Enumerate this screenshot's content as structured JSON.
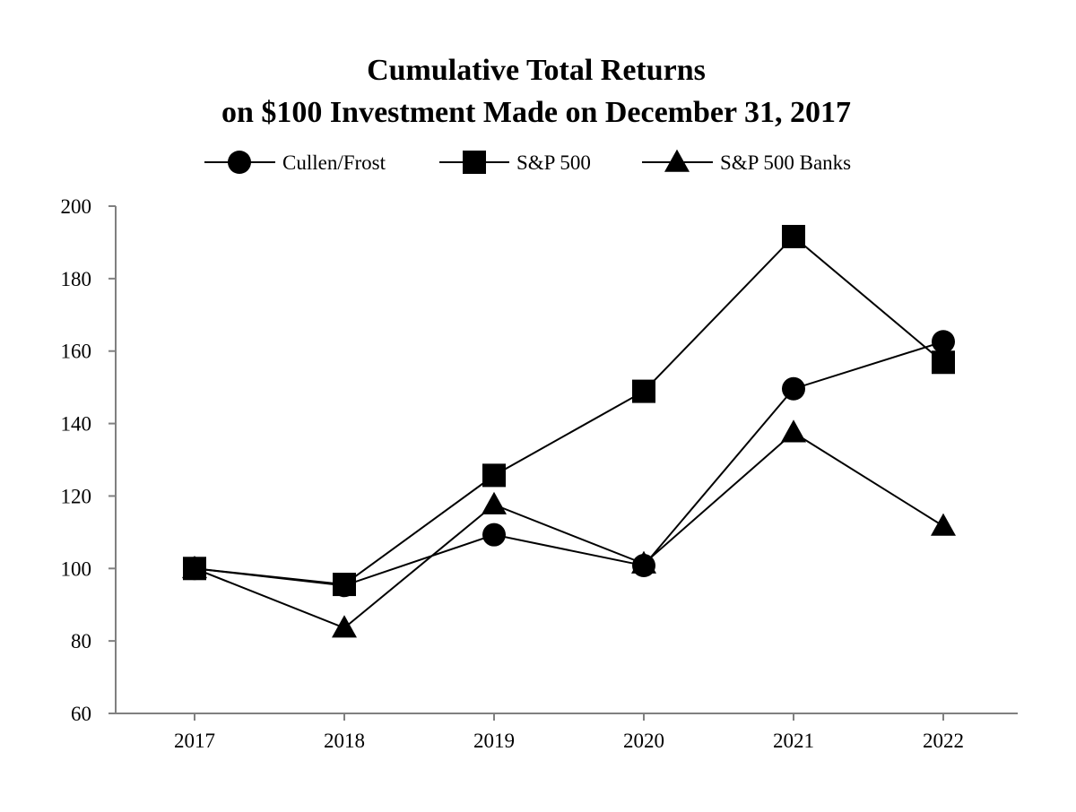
{
  "chart_data": {
    "type": "line",
    "title": "Cumulative Total Returns",
    "subtitle": "on $100 Investment Made on December 31, 2017",
    "xlabel": "",
    "ylabel": "",
    "categories": [
      "2017",
      "2018",
      "2019",
      "2020",
      "2021",
      "2022"
    ],
    "ylim": [
      60,
      200
    ],
    "yticks": [
      60,
      80,
      100,
      120,
      140,
      160,
      180,
      200
    ],
    "grid": false,
    "legend_position": "top",
    "series": [
      {
        "name": "Cullen/Frost",
        "marker": "circle",
        "color": "#000000",
        "values": [
          100,
          95.3,
          109.3,
          100.8,
          149.6,
          162.6
        ]
      },
      {
        "name": "S&P 500",
        "marker": "square",
        "color": "#000000",
        "values": [
          100,
          95.6,
          125.7,
          148.9,
          191.6,
          156.9
        ]
      },
      {
        "name": "S&P 500 Banks",
        "marker": "triangle",
        "color": "#000000",
        "values": [
          100,
          83.6,
          117.6,
          101.3,
          137.5,
          111.7
        ]
      }
    ]
  }
}
